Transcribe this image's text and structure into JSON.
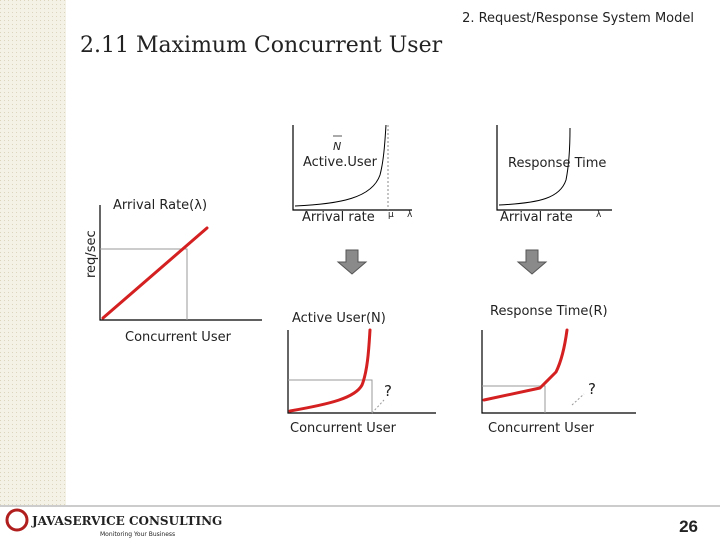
{
  "header": {
    "section": "2. Request/Response System Model",
    "title": "2.11 Maximum Concurrent User"
  },
  "left_plot": {
    "y_label": "Arrival Rate(λ)",
    "y_unit": "req/sec",
    "x_label": "Concurrent User"
  },
  "top_middle": {
    "y_label": "Active.User",
    "symbol": "N",
    "x_label": "Arrival rate",
    "mu": "μ",
    "lambda": "λ"
  },
  "top_right": {
    "y_label": "Response Time",
    "x_label": "Arrival rate",
    "lambda": "λ"
  },
  "bottom_middle": {
    "y_label": "Active User(N)",
    "question": "?",
    "x_label": "Concurrent User"
  },
  "bottom_right": {
    "y_label": "Response Time(R)",
    "question": "?",
    "x_label": "Concurrent User"
  },
  "footer": {
    "company": "JAVASERVICE CONSULTING",
    "tagline": "Monitoring Your Business",
    "page": "26"
  }
}
